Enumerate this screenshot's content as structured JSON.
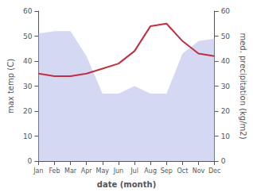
{
  "chart_data": {
    "type": "line",
    "xlabel": "date (month)",
    "ylabel": "max temp (C)",
    "y2label": "med. precipitation (kg/m2)",
    "categories": [
      "Jan",
      "Feb",
      "Mar",
      "Apr",
      "May",
      "Jun",
      "Jul",
      "Aug",
      "Sep",
      "Oct",
      "Nov",
      "Dec"
    ],
    "series": [
      {
        "type": "area",
        "color": "#b0b8e8",
        "axis": "y2",
        "values": [
          51,
          52,
          52,
          42,
          27,
          27,
          30,
          27,
          27,
          43,
          48,
          49
        ]
      },
      {
        "type": "line",
        "color": "#c03040",
        "values": [
          35,
          34,
          34,
          35,
          37,
          39,
          44,
          54,
          55,
          48,
          43,
          42
        ]
      }
    ],
    "ylim": [
      0,
      60
    ],
    "yticks": [
      0,
      10,
      20,
      30,
      40,
      50,
      60
    ],
    "y2lim": [
      0,
      60
    ],
    "y2ticks": [
      0,
      10,
      20,
      30,
      40,
      50,
      60
    ],
    "grid": false
  }
}
